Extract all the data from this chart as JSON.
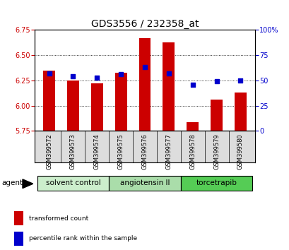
{
  "title": "GDS3556 / 232358_at",
  "samples": [
    "GSM399572",
    "GSM399573",
    "GSM399574",
    "GSM399575",
    "GSM399576",
    "GSM399577",
    "GSM399578",
    "GSM399579",
    "GSM399580"
  ],
  "red_values": [
    6.35,
    6.25,
    6.22,
    6.33,
    6.67,
    6.63,
    5.84,
    6.06,
    6.13
  ],
  "blue_values": [
    57,
    54,
    53,
    56,
    63,
    57,
    46,
    49,
    50
  ],
  "ylim_left": [
    5.75,
    6.75
  ],
  "ylim_right": [
    0,
    100
  ],
  "yticks_left": [
    5.75,
    6.0,
    6.25,
    6.5,
    6.75
  ],
  "yticks_right": [
    0,
    25,
    50,
    75,
    100
  ],
  "groups": [
    {
      "label": "solvent control",
      "indices": [
        0,
        1,
        2
      ],
      "color": "#cceecc"
    },
    {
      "label": "angiotensin II",
      "indices": [
        3,
        4,
        5
      ],
      "color": "#aaddaa"
    },
    {
      "label": "torcetrapib",
      "indices": [
        6,
        7,
        8
      ],
      "color": "#55cc55"
    }
  ],
  "bar_color": "#cc0000",
  "dot_color": "#0000cc",
  "bar_width": 0.5,
  "bar_bottom": 5.75,
  "legend_red_label": "transformed count",
  "legend_blue_label": "percentile rank within the sample",
  "agent_label": "agent",
  "background_color": "#ffffff",
  "plot_bg_color": "#ffffff",
  "tick_color_left": "#cc0000",
  "tick_color_right": "#0000cc",
  "title_fontsize": 10,
  "tick_fontsize": 7,
  "dot_size": 18,
  "sample_label_fontsize": 6,
  "group_label_fontsize": 7.5,
  "legend_fontsize": 6.5
}
